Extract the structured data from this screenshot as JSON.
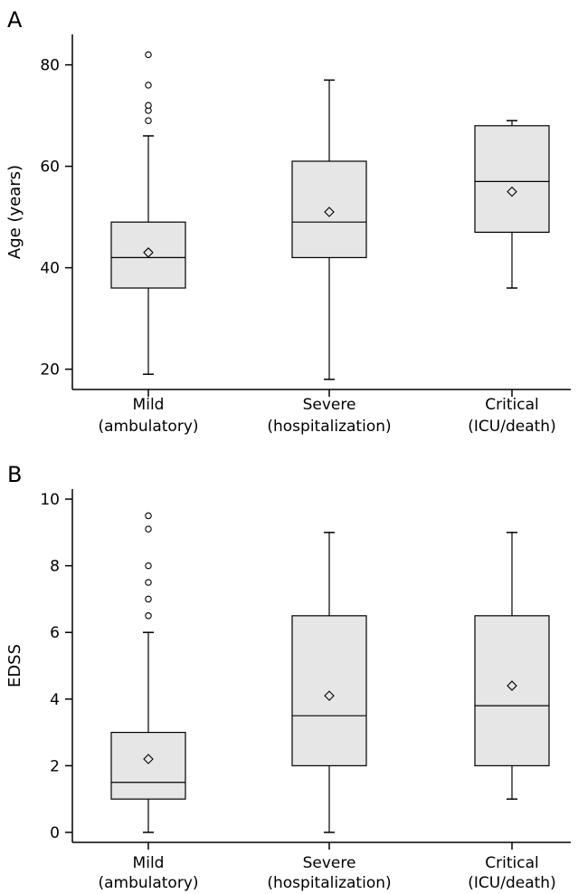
{
  "chart_data": [
    {
      "panel_label": "A",
      "type": "box",
      "ylabel": "Age (years)",
      "xlabel": "",
      "ylim": [
        16,
        86
      ],
      "yticks": [
        20,
        40,
        60,
        80
      ],
      "categories": [
        [
          "Mild",
          "(ambulatory)"
        ],
        [
          "Severe",
          "(hospitalization)"
        ],
        [
          "Critical",
          "(ICU/death)"
        ]
      ],
      "boxes": [
        {
          "whisker_low": 19,
          "q1": 36,
          "median": 42,
          "q3": 49,
          "whisker_high": 66,
          "mean": 43,
          "outliers": [
            69,
            71,
            72,
            76,
            82
          ]
        },
        {
          "whisker_low": 18,
          "q1": 42,
          "median": 49,
          "q3": 61,
          "whisker_high": 77,
          "mean": 51,
          "outliers": []
        },
        {
          "whisker_low": 36,
          "q1": 47,
          "median": 57,
          "q3": 68,
          "whisker_high": 69,
          "mean": 55,
          "outliers": []
        }
      ]
    },
    {
      "panel_label": "B",
      "type": "box",
      "ylabel": "EDSS",
      "xlabel": "",
      "ylim": [
        -0.3,
        10.3
      ],
      "yticks": [
        0,
        2,
        4,
        6,
        8,
        10
      ],
      "categories": [
        [
          "Mild",
          "(ambulatory)"
        ],
        [
          "Severe",
          "(hospitalization)"
        ],
        [
          "Critical",
          "(ICU/death)"
        ]
      ],
      "boxes": [
        {
          "whisker_low": 0,
          "q1": 1,
          "median": 1.5,
          "q3": 3,
          "whisker_high": 6,
          "mean": 2.2,
          "outliers": [
            6.5,
            7,
            7.5,
            8,
            9.1,
            9.5
          ]
        },
        {
          "whisker_low": 0,
          "q1": 2,
          "median": 3.5,
          "q3": 6.5,
          "whisker_high": 9,
          "mean": 4.1,
          "outliers": []
        },
        {
          "whisker_low": 1,
          "q1": 2,
          "median": 3.8,
          "q3": 6.5,
          "whisker_high": 9,
          "mean": 4.4,
          "outliers": []
        }
      ]
    }
  ],
  "colors": {
    "box_fill": "#e6e6e6",
    "line": "#000000"
  }
}
